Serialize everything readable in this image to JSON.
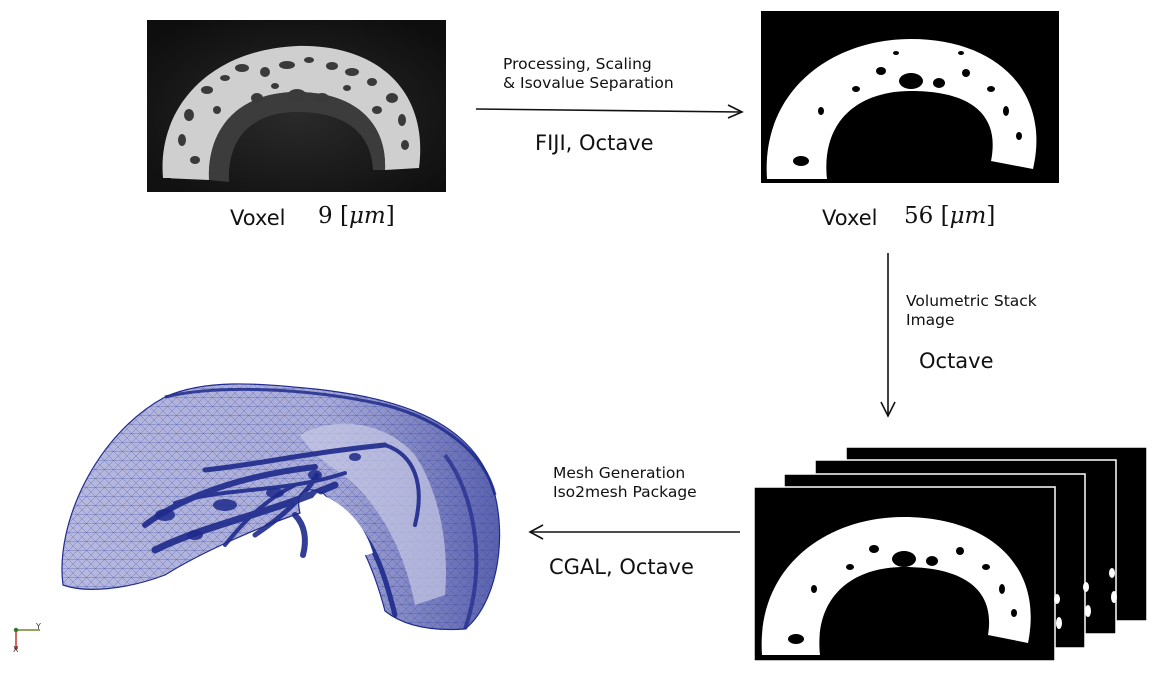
{
  "stages": {
    "ct_scan": {
      "voxel_label": "Voxel",
      "voxel_value": "9",
      "voxel_unit": "μm"
    },
    "binary": {
      "voxel_label": "Voxel",
      "voxel_value": "56",
      "voxel_unit": "μm"
    }
  },
  "edges": {
    "processing": {
      "line1": "Processing, Scaling",
      "line2": "& Isovalue Separation",
      "tool": "FIJI, Octave"
    },
    "stacking": {
      "line1": "Volumetric Stack",
      "line2": "Image",
      "tool": "Octave"
    },
    "meshing": {
      "line1": "Mesh Generation",
      "line2": "Iso2mesh Package",
      "tool": "CGAL, Octave"
    }
  },
  "axes_triad": {
    "y_label": "Y",
    "x_label": "X"
  },
  "colors": {
    "mesh": "#1e2a8c",
    "mesh_light": "#8e92c8",
    "ct_bone": "#d6d6d6",
    "ct_background": "#1b1b1b"
  }
}
